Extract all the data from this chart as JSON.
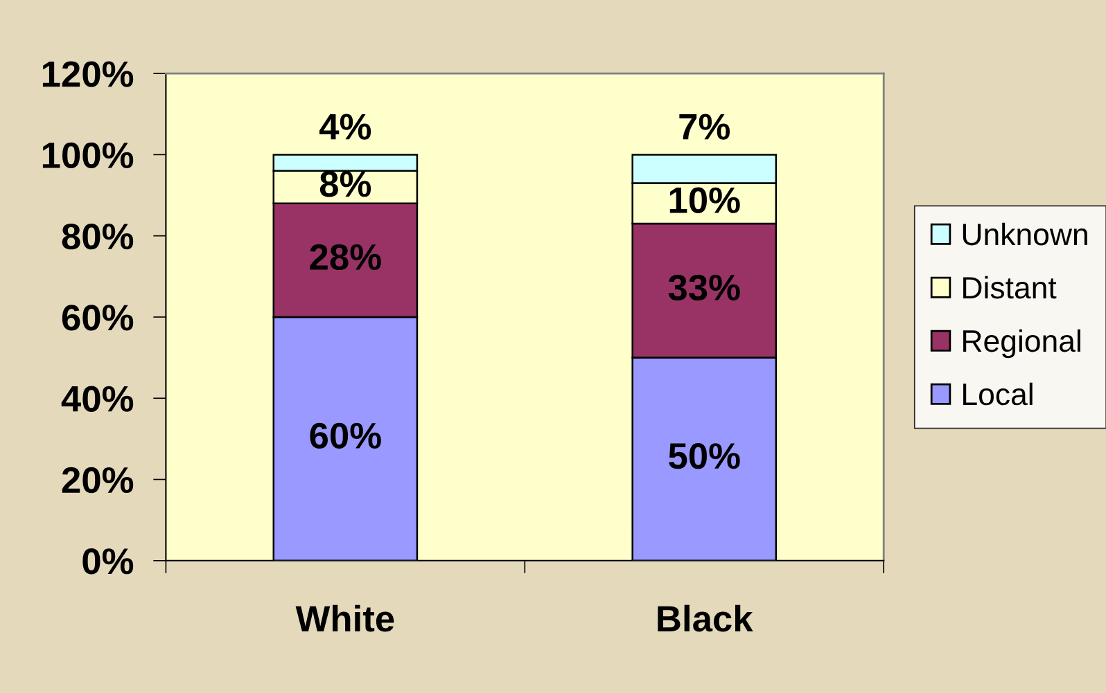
{
  "chart_data": {
    "type": "bar",
    "stacked": true,
    "categories": [
      "White",
      "Black"
    ],
    "series": [
      {
        "name": "Local",
        "color": "#9999ff",
        "values": [
          60,
          50
        ],
        "value_labels": [
          "60%",
          "50%"
        ]
      },
      {
        "name": "Regional",
        "color": "#993366",
        "values": [
          28,
          33
        ],
        "value_labels": [
          "28%",
          "33%"
        ]
      },
      {
        "name": "Distant",
        "color": "#ffffcc",
        "values": [
          8,
          10
        ],
        "value_labels": [
          "8%",
          "10%"
        ]
      },
      {
        "name": "Unknown",
        "color": "#ccffff",
        "values": [
          4,
          7
        ],
        "value_labels": [
          "4%",
          "7%"
        ]
      }
    ],
    "ylim": [
      0,
      120
    ],
    "yticks": [
      {
        "value": 0,
        "label": "0%"
      },
      {
        "value": 20,
        "label": "20%"
      },
      {
        "value": 40,
        "label": "40%"
      },
      {
        "value": 60,
        "label": "60%"
      },
      {
        "value": 80,
        "label": "80%"
      },
      {
        "value": 100,
        "label": "100%"
      },
      {
        "value": 120,
        "label": "120%"
      }
    ],
    "legend": "right",
    "grid": false
  }
}
